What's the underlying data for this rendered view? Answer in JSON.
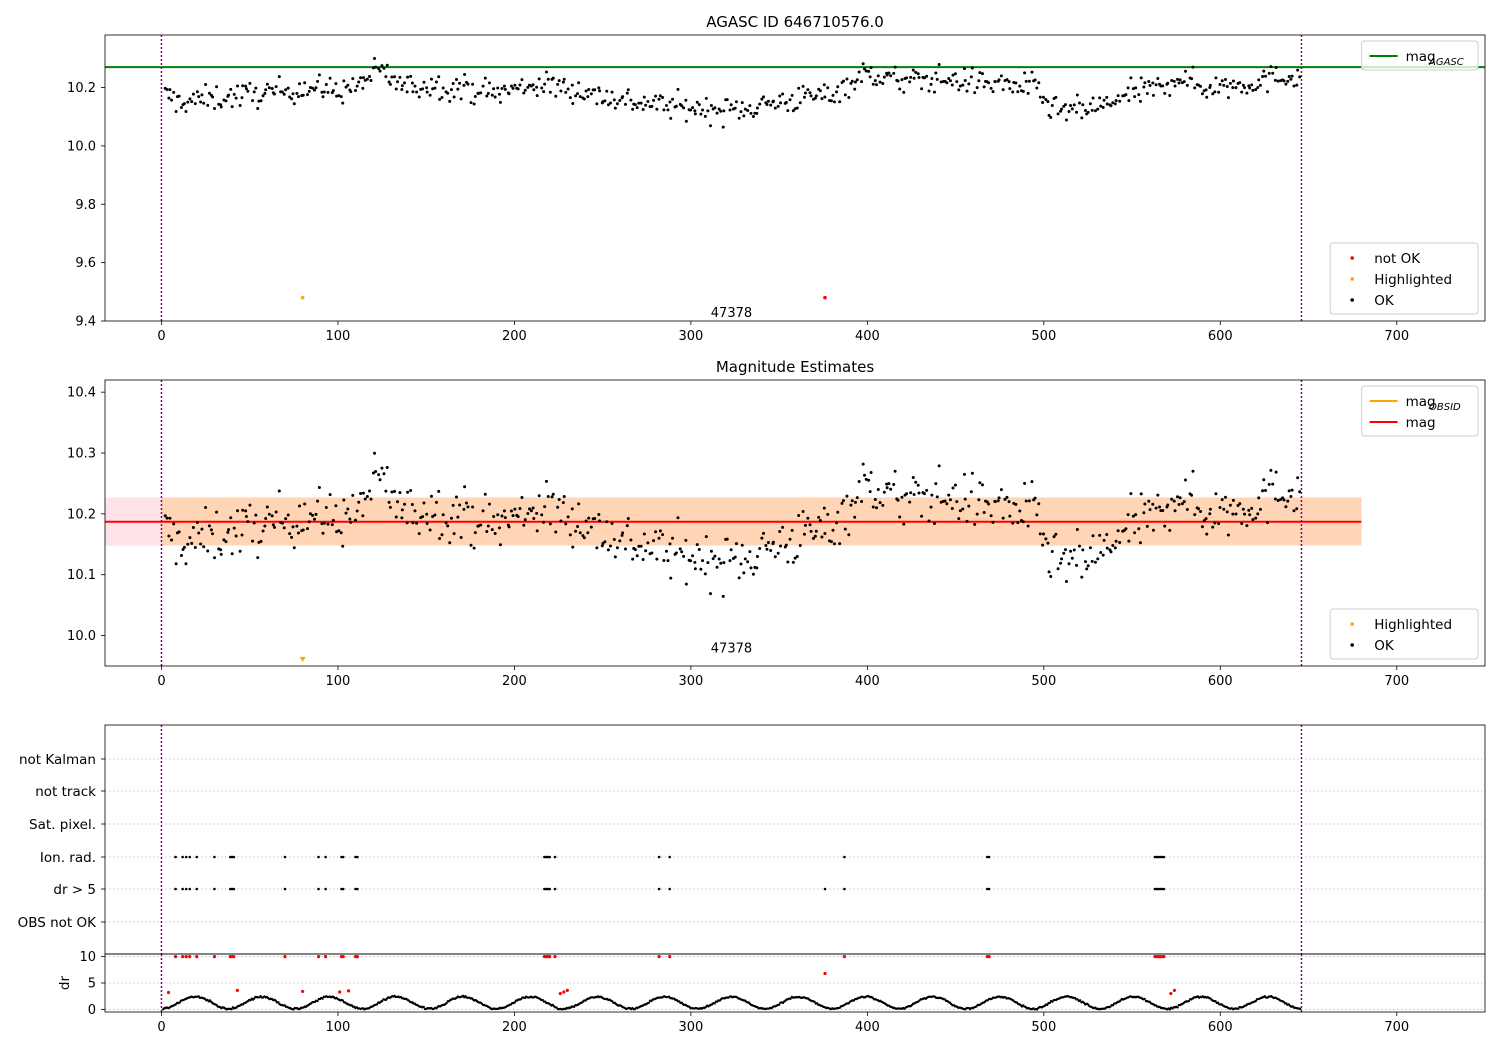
{
  "chart_data": [
    {
      "type": "scatter",
      "title": "AGASC ID 646710576.0",
      "xlabel": "",
      "ylabel": "",
      "xlim": [
        -32,
        750
      ],
      "ylim": [
        9.4,
        10.38
      ],
      "xticks": [
        0,
        100,
        200,
        300,
        400,
        500,
        600,
        700
      ],
      "yticks": [
        9.4,
        9.6,
        9.8,
        10.0,
        10.2
      ],
      "ytick_labels": [
        "9.4",
        "9.6",
        "9.8",
        "10.0",
        "10.2"
      ],
      "grid": false,
      "hline": {
        "name": "mag_AGASC",
        "value": 10.27,
        "color": "#008000"
      },
      "vlines": {
        "values": [
          0,
          646
        ],
        "color": "#800080",
        "style": "dotted"
      },
      "annotation": {
        "text": "47378",
        "x": 323,
        "y": 9.43
      },
      "series": [
        {
          "name": "OK",
          "color": "#000000",
          "anchors": [
            [
              0,
              10.18
            ],
            [
              10,
              10.15
            ],
            [
              40,
              10.17
            ],
            [
              60,
              10.18
            ],
            [
              80,
              10.2
            ],
            [
              100,
              10.19
            ],
            [
              110,
              10.2
            ],
            [
              118,
              10.24
            ],
            [
              125,
              10.26
            ],
            [
              132,
              10.22
            ],
            [
              140,
              10.2
            ],
            [
              150,
              10.21
            ],
            [
              170,
              10.2
            ],
            [
              190,
              10.18
            ],
            [
              210,
              10.21
            ],
            [
              230,
              10.2
            ],
            [
              250,
              10.17
            ],
            [
              270,
              10.15
            ],
            [
              300,
              10.13
            ],
            [
              320,
              10.12
            ],
            [
              340,
              10.14
            ],
            [
              360,
              10.16
            ],
            [
              380,
              10.18
            ],
            [
              400,
              10.25
            ],
            [
              420,
              10.22
            ],
            [
              440,
              10.23
            ],
            [
              460,
              10.22
            ],
            [
              480,
              10.21
            ],
            [
              495,
              10.2
            ],
            [
              505,
              10.12
            ],
            [
              520,
              10.12
            ],
            [
              535,
              10.14
            ],
            [
              550,
              10.18
            ],
            [
              568,
              10.2
            ],
            [
              575,
              10.24
            ],
            [
              590,
              10.2
            ],
            [
              610,
              10.21
            ],
            [
              630,
              10.23
            ],
            [
              646,
              10.25
            ]
          ],
          "count": 640
        },
        {
          "name": "Highlighted",
          "color": "#FFA500",
          "x": [
            80
          ],
          "y": [
            9.48
          ]
        },
        {
          "name": "not OK",
          "color": "#FF0000",
          "x": [
            376
          ],
          "y": [
            9.48
          ]
        }
      ],
      "legends": [
        {
          "position": "top-right",
          "entries": [
            {
              "label": "mag",
              "sub": "AGASC",
              "color": "#008000",
              "kind": "line"
            }
          ]
        },
        {
          "position": "lower-right",
          "entries": [
            {
              "label": "not OK",
              "color": "#FF0000",
              "kind": "dot"
            },
            {
              "label": "Highlighted",
              "color": "#FFA500",
              "kind": "dot"
            },
            {
              "label": "OK",
              "color": "#000000",
              "kind": "dot"
            }
          ]
        }
      ]
    },
    {
      "type": "scatter",
      "title": "Magnitude Estimates",
      "xlabel": "",
      "ylabel": "",
      "xlim": [
        -32,
        750
      ],
      "ylim": [
        9.95,
        10.42
      ],
      "xticks": [
        0,
        100,
        200,
        300,
        400,
        500,
        600,
        700
      ],
      "yticks": [
        10.0,
        10.1,
        10.2,
        10.3,
        10.4
      ],
      "ytick_labels": [
        "10.0",
        "10.1",
        "10.2",
        "10.3",
        "10.4"
      ],
      "grid": false,
      "hline": {
        "name": "mag",
        "value": 10.187,
        "color": "#FF0000",
        "x_range": [
          -32,
          680
        ]
      },
      "bands": [
        {
          "name": "mag",
          "lower": 10.148,
          "upper": 10.227,
          "color": "#FFC0CB",
          "x_range": [
            -32,
            680
          ]
        },
        {
          "name": "mag_OBSID",
          "lower": 10.148,
          "upper": 10.227,
          "color": "#FFA500",
          "x_range": [
            0,
            680
          ]
        }
      ],
      "vlines": {
        "values": [
          0,
          646
        ],
        "color": "#800080",
        "style": "dotted"
      },
      "annotation": {
        "text": "47378",
        "x": 323,
        "y": 9.98
      },
      "series": [
        {
          "name": "OK",
          "color": "#000000",
          "anchors": [
            [
              0,
              10.18
            ],
            [
              10,
              10.15
            ],
            [
              40,
              10.17
            ],
            [
              60,
              10.18
            ],
            [
              80,
              10.2
            ],
            [
              100,
              10.19
            ],
            [
              110,
              10.2
            ],
            [
              118,
              10.24
            ],
            [
              125,
              10.26
            ],
            [
              132,
              10.22
            ],
            [
              140,
              10.2
            ],
            [
              150,
              10.21
            ],
            [
              170,
              10.2
            ],
            [
              190,
              10.18
            ],
            [
              210,
              10.21
            ],
            [
              230,
              10.2
            ],
            [
              250,
              10.17
            ],
            [
              270,
              10.15
            ],
            [
              300,
              10.13
            ],
            [
              320,
              10.12
            ],
            [
              340,
              10.14
            ],
            [
              360,
              10.16
            ],
            [
              380,
              10.18
            ],
            [
              400,
              10.25
            ],
            [
              420,
              10.22
            ],
            [
              440,
              10.23
            ],
            [
              460,
              10.22
            ],
            [
              480,
              10.21
            ],
            [
              495,
              10.2
            ],
            [
              505,
              10.12
            ],
            [
              520,
              10.12
            ],
            [
              535,
              10.14
            ],
            [
              550,
              10.18
            ],
            [
              568,
              10.2
            ],
            [
              575,
              10.24
            ],
            [
              590,
              10.2
            ],
            [
              610,
              10.21
            ],
            [
              630,
              10.23
            ],
            [
              646,
              10.25
            ]
          ],
          "count": 640
        },
        {
          "name": "Highlighted",
          "color": "#FFA500",
          "x": [
            80
          ],
          "y": [
            9.96
          ],
          "marker": "triangle-down"
        }
      ],
      "legends": [
        {
          "position": "top-right",
          "entries": [
            {
              "label": "mag",
              "sub": "OBSID",
              "color": "#FFA500",
              "kind": "line"
            },
            {
              "label": "mag",
              "color": "#FF0000",
              "kind": "line"
            }
          ]
        },
        {
          "position": "lower-right",
          "entries": [
            {
              "label": "Highlighted",
              "color": "#FFA500",
              "kind": "dot"
            },
            {
              "label": "OK",
              "color": "#000000",
              "kind": "dot"
            }
          ]
        }
      ]
    },
    {
      "type": "scatter",
      "title": "",
      "xlim": [
        -32,
        750
      ],
      "xticks": [
        0,
        100,
        200,
        300,
        400,
        500,
        600,
        700
      ],
      "flag_rows": [
        "not Kalman",
        "not track",
        "Sat. pixel.",
        "Ion. rad.",
        "dr > 5",
        "OBS not OK"
      ],
      "flags": {
        "Ion. rad.": [
          8,
          12,
          14,
          16,
          20,
          30,
          39,
          40,
          41,
          70,
          89,
          93,
          102,
          103,
          110,
          111,
          217,
          218,
          219,
          220,
          223,
          282,
          288,
          387,
          468,
          469,
          563,
          564,
          565,
          566,
          567,
          568
        ],
        "dr > 5": [
          8,
          12,
          14,
          16,
          20,
          30,
          39,
          40,
          41,
          70,
          89,
          93,
          102,
          103,
          110,
          111,
          217,
          218,
          219,
          220,
          223,
          282,
          288,
          376,
          387,
          468,
          469,
          563,
          564,
          565,
          566,
          567,
          568
        ]
      },
      "vlines": {
        "values": [
          0,
          646
        ],
        "color": "#800080",
        "style": "dotted"
      }
    },
    {
      "type": "scatter",
      "title": "",
      "ylabel": "dr",
      "xlim": [
        -32,
        750
      ],
      "ylim": [
        -0.5,
        10.5
      ],
      "xticks": [
        0,
        100,
        200,
        300,
        400,
        500,
        600,
        700
      ],
      "yticks": [
        0,
        5,
        10
      ],
      "ytick_labels": [
        "0",
        "5",
        "10"
      ],
      "vlines": {
        "values": [
          0,
          646
        ],
        "color": "#800080",
        "style": "dotted"
      },
      "series": [
        {
          "name": "OK",
          "color": "#000000",
          "description": "periodic dither, 0 to 2.5"
        },
        {
          "name": "not OK",
          "color": "#FF0000",
          "x": [
            8,
            12,
            14,
            16,
            20,
            30,
            39,
            40,
            41,
            70,
            89,
            93,
            102,
            103,
            110,
            111,
            217,
            218,
            219,
            220,
            223,
            282,
            288,
            387,
            468,
            469,
            563,
            564,
            565,
            566,
            567,
            568,
            376,
            4,
            43,
            80,
            101,
            106,
            226,
            228,
            230,
            572,
            574
          ],
          "y": [
            10,
            10,
            10,
            10,
            10,
            10,
            10,
            10,
            10,
            10,
            10,
            10,
            10,
            10,
            10,
            10,
            10,
            10,
            10,
            10,
            10,
            10,
            10,
            10,
            10,
            10,
            10,
            10,
            10,
            10,
            10,
            10,
            6.8,
            3.2,
            3.6,
            3.4,
            3.3,
            3.5,
            3.0,
            3.3,
            3.6,
            3.0,
            3.6
          ]
        }
      ]
    }
  ]
}
